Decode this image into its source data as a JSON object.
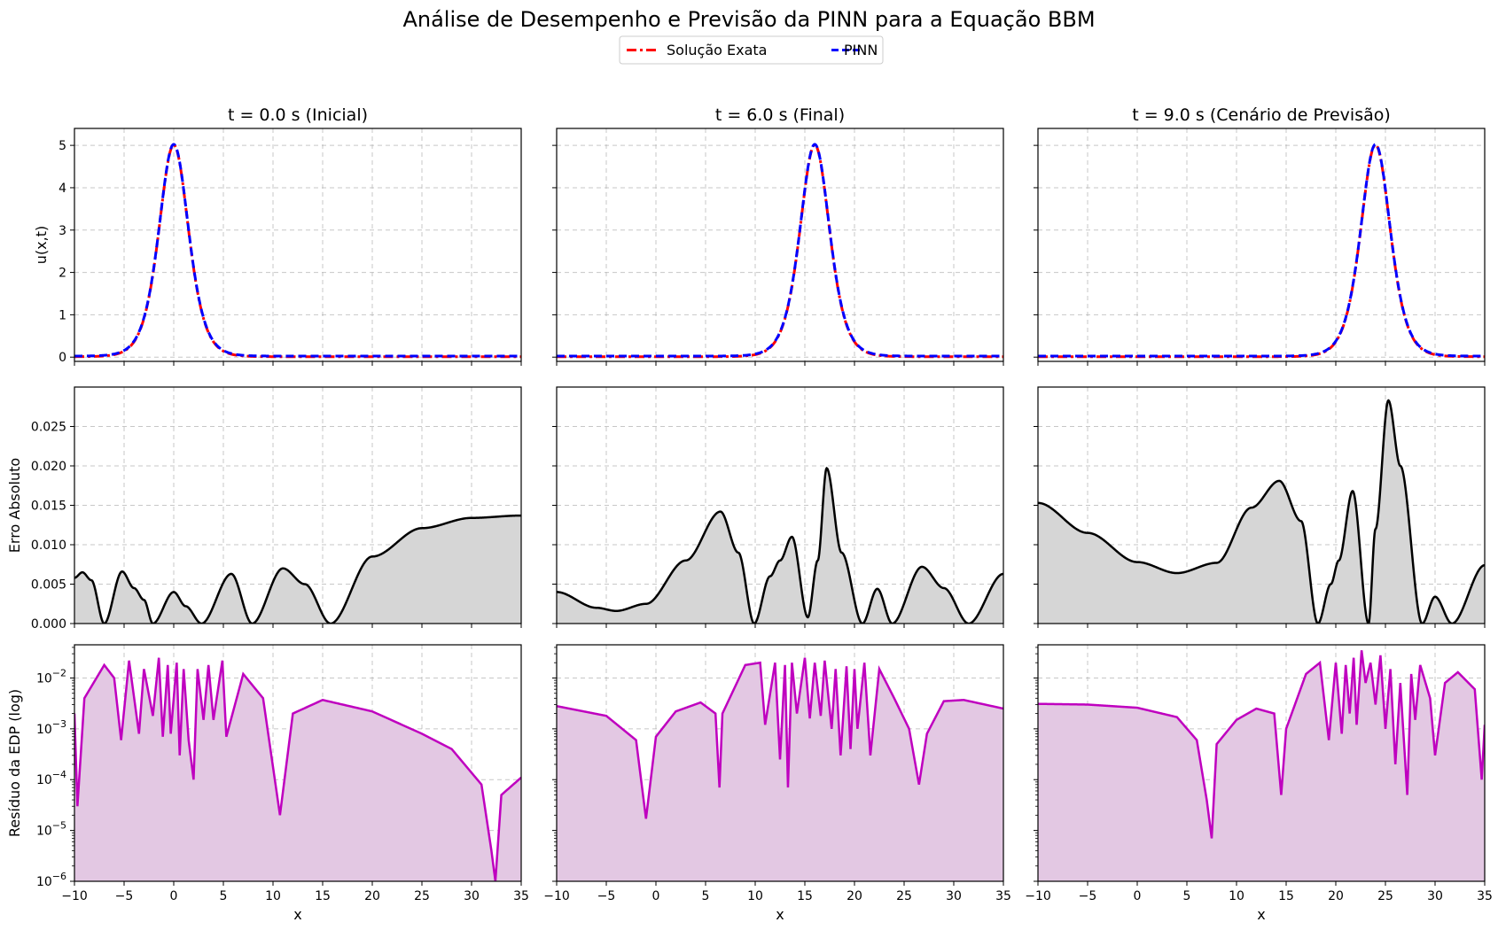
{
  "figure": {
    "title": "Análise de Desempenho e Previsão da PINN para a Equação BBM",
    "legend": {
      "placement": "top-center",
      "entries": [
        {
          "label": "Solução Exata",
          "color": "#ff0000",
          "style": "dash-dot"
        },
        {
          "label": "PINN",
          "color": "#0000ff",
          "style": "dashed"
        }
      ]
    },
    "colors": {
      "exact": "#ff0000",
      "pinn": "#0000ff",
      "error_line": "#000000",
      "error_fill": "#d6d6d6",
      "residual_line": "#bf00bf",
      "residual_fill": "#e3c8e3"
    }
  },
  "chart_data": {
    "type": "line",
    "grid": true,
    "columns": [
      {
        "title": "t = 0.0 s (Inicial)",
        "t": 0.0,
        "peak_x": 0.0
      },
      {
        "title": "t = 6.0 s (Final)",
        "t": 6.0,
        "peak_x": 16.0
      },
      {
        "title": "t = 9.0 s (Cenário de Previsão)",
        "t": 9.0,
        "peak_x": 24.0
      }
    ],
    "rows": [
      {
        "ylabel": "u(x,t)",
        "ylim": [
          -0.1,
          5.4
        ],
        "yticks": [
          "0",
          "1",
          "2",
          "3",
          "4",
          "5"
        ],
        "ytick_values": [
          0,
          1,
          2,
          3,
          4,
          5
        ]
      },
      {
        "ylabel": "Erro Absoluto",
        "ylim": [
          0,
          0.03
        ],
        "yticks": [
          "0.000",
          "0.005",
          "0.010",
          "0.015",
          "0.020",
          "0.025"
        ],
        "ytick_values": [
          0,
          0.005,
          0.01,
          0.015,
          0.02,
          0.025
        ]
      },
      {
        "ylabel": "Resíduo da EDP (log)",
        "scale": "log",
        "ylim": [
          1e-06,
          0.045
        ],
        "ytick_values": [
          1e-06,
          1e-05,
          0.0001,
          0.001,
          0.01
        ],
        "ytick_base": "10",
        "ytick_exponents": [
          "−6",
          "−5",
          "−4",
          "−3",
          "−2"
        ]
      }
    ],
    "xlabel": "x",
    "xlim": [
      -10,
      35
    ],
    "xticks": [
      "−10",
      "−5",
      "0",
      "5",
      "10",
      "15",
      "20",
      "25",
      "30",
      "35"
    ],
    "xtick_values": [
      -10,
      -5,
      0,
      5,
      10,
      15,
      20,
      25,
      30,
      35
    ],
    "solution": {
      "amplitude": 5.0,
      "shape": "sech^2",
      "width": 2.0
    },
    "error": [
      [
        [
          -10,
          0.0058
        ],
        [
          -9.2,
          0.0065
        ],
        [
          -8.3,
          0.0055
        ],
        [
          -7,
          0
        ],
        [
          -5.2,
          0.0066
        ],
        [
          -4,
          0.0045
        ],
        [
          -3,
          0.003
        ],
        [
          -2.1,
          0
        ],
        [
          0,
          0.004
        ],
        [
          1.2,
          0.0022
        ],
        [
          2.8,
          0
        ],
        [
          5.8,
          0.0063
        ],
        [
          7.9,
          0
        ],
        [
          11,
          0.007
        ],
        [
          13.2,
          0.005
        ],
        [
          15.8,
          0
        ],
        [
          20,
          0.0085
        ],
        [
          25,
          0.0121
        ],
        [
          30,
          0.0134
        ],
        [
          35,
          0.0137
        ]
      ],
      [
        [
          -10,
          0.004
        ],
        [
          -6,
          0.002
        ],
        [
          -4,
          0.0016
        ],
        [
          -1,
          0.0025
        ],
        [
          3,
          0.008
        ],
        [
          6.5,
          0.0142
        ],
        [
          8.3,
          0.009
        ],
        [
          9.9,
          0
        ],
        [
          11.5,
          0.006
        ],
        [
          12.5,
          0.008
        ],
        [
          13.7,
          0.011
        ],
        [
          15.3,
          0.0008
        ],
        [
          16.3,
          0.008
        ],
        [
          17.2,
          0.0197
        ],
        [
          18.7,
          0.009
        ],
        [
          20.8,
          0
        ],
        [
          22.3,
          0.0044
        ],
        [
          23.8,
          0
        ],
        [
          26.8,
          0.0072
        ],
        [
          29,
          0.0045
        ],
        [
          31.5,
          0
        ],
        [
          35,
          0.0063
        ]
      ],
      [
        [
          -10,
          0.0153
        ],
        [
          -5,
          0.0115
        ],
        [
          0,
          0.0078
        ],
        [
          4,
          0.0064
        ],
        [
          8,
          0.0077
        ],
        [
          11.5,
          0.0147
        ],
        [
          14.3,
          0.0181
        ],
        [
          16.5,
          0.013
        ],
        [
          18.2,
          0
        ],
        [
          19.5,
          0.005
        ],
        [
          20.3,
          0.008
        ],
        [
          21.7,
          0.0168
        ],
        [
          23.3,
          0
        ],
        [
          24,
          0.012
        ],
        [
          25.3,
          0.0283
        ],
        [
          26.5,
          0.02
        ],
        [
          28.7,
          0
        ],
        [
          30,
          0.0034
        ],
        [
          31.7,
          0
        ],
        [
          35,
          0.0074
        ]
      ]
    ],
    "residual": [
      [
        [
          -10,
          0.002
        ],
        [
          -9.7,
          3e-05
        ],
        [
          -9,
          0.004
        ],
        [
          -7,
          0.018
        ],
        [
          -6,
          0.01
        ],
        [
          -5.3,
          0.0006
        ],
        [
          -4.5,
          0.022
        ],
        [
          -3.5,
          0.0008
        ],
        [
          -3,
          0.015
        ],
        [
          -2.1,
          0.0018
        ],
        [
          -1.5,
          0.025
        ],
        [
          -1.1,
          0.0007
        ],
        [
          -0.6,
          0.018
        ],
        [
          -0.3,
          0.0008
        ],
        [
          0.3,
          0.02
        ],
        [
          0.6,
          0.0003
        ],
        [
          1,
          0.015
        ],
        [
          1.5,
          0.0006
        ],
        [
          2,
          0.0001
        ],
        [
          2.4,
          0.015
        ],
        [
          3,
          0.0015
        ],
        [
          3.5,
          0.018
        ],
        [
          4,
          0.0015
        ],
        [
          4.9,
          0.022
        ],
        [
          5.3,
          0.0007
        ],
        [
          7,
          0.012
        ],
        [
          9,
          0.004
        ],
        [
          10.7,
          2e-05
        ],
        [
          12,
          0.002
        ],
        [
          15,
          0.0037
        ],
        [
          20,
          0.0022
        ],
        [
          25,
          0.0008
        ],
        [
          28,
          0.0004
        ],
        [
          31,
          8e-05
        ],
        [
          32,
          4e-06
        ],
        [
          32.4,
          1e-06
        ],
        [
          33,
          5e-05
        ],
        [
          35,
          0.00011
        ]
      ],
      [
        [
          -10,
          0.0028
        ],
        [
          -5,
          0.0018
        ],
        [
          -2,
          0.0006
        ],
        [
          -1,
          1.7e-05
        ],
        [
          0,
          0.0007
        ],
        [
          2,
          0.0022
        ],
        [
          4.5,
          0.0033
        ],
        [
          6,
          0.002
        ],
        [
          6.4,
          7e-05
        ],
        [
          6.7,
          0.002
        ],
        [
          9,
          0.018
        ],
        [
          10.5,
          0.02
        ],
        [
          11,
          0.0012
        ],
        [
          12,
          0.02
        ],
        [
          12.5,
          0.00025
        ],
        [
          13,
          0.018
        ],
        [
          13.3,
          7e-05
        ],
        [
          13.7,
          0.02
        ],
        [
          14.2,
          0.002
        ],
        [
          15,
          0.025
        ],
        [
          15.5,
          0.0016
        ],
        [
          16,
          0.02
        ],
        [
          16.6,
          0.0018
        ],
        [
          17,
          0.022
        ],
        [
          17.7,
          0.001
        ],
        [
          18.1,
          0.015
        ],
        [
          18.6,
          0.0003
        ],
        [
          19.2,
          0.017
        ],
        [
          19.6,
          0.0004
        ],
        [
          20,
          0.015
        ],
        [
          20.3,
          0.001
        ],
        [
          21,
          0.02
        ],
        [
          21.6,
          0.0003
        ],
        [
          22.5,
          0.015
        ],
        [
          24,
          0.004
        ],
        [
          25.5,
          0.001
        ],
        [
          26.5,
          8e-05
        ],
        [
          27.3,
          0.0008
        ],
        [
          29,
          0.0035
        ],
        [
          31,
          0.0037
        ],
        [
          35,
          0.0025
        ]
      ],
      [
        [
          -10,
          0.0031
        ],
        [
          -5,
          0.003
        ],
        [
          0,
          0.0026
        ],
        [
          4,
          0.0017
        ],
        [
          6,
          0.0006
        ],
        [
          7,
          4e-05
        ],
        [
          7.5,
          7e-06
        ],
        [
          8,
          0.0005
        ],
        [
          10,
          0.0015
        ],
        [
          12,
          0.0025
        ],
        [
          13.8,
          0.002
        ],
        [
          14.5,
          5e-05
        ],
        [
          15,
          0.001
        ],
        [
          17,
          0.012
        ],
        [
          18.4,
          0.02
        ],
        [
          19.3,
          0.0006
        ],
        [
          20,
          0.02
        ],
        [
          20.6,
          0.0008
        ],
        [
          21,
          0.018
        ],
        [
          21.4,
          0.002
        ],
        [
          21.8,
          0.025
        ],
        [
          22.1,
          0.0012
        ],
        [
          22.6,
          0.035
        ],
        [
          23,
          0.008
        ],
        [
          23.5,
          0.02
        ],
        [
          24,
          0.003
        ],
        [
          24.5,
          0.028
        ],
        [
          25,
          0.001
        ],
        [
          25.5,
          0.015
        ],
        [
          26,
          0.0002
        ],
        [
          26.5,
          0.008
        ],
        [
          27.2,
          5e-05
        ],
        [
          27.6,
          0.012
        ],
        [
          28,
          0.0015
        ],
        [
          28.5,
          0.018
        ],
        [
          29.5,
          0.004
        ],
        [
          30,
          0.0003
        ],
        [
          31,
          0.008
        ],
        [
          32.3,
          0.013
        ],
        [
          34,
          0.006
        ],
        [
          34.7,
          0.0001
        ],
        [
          35,
          0.0012
        ]
      ]
    ]
  }
}
